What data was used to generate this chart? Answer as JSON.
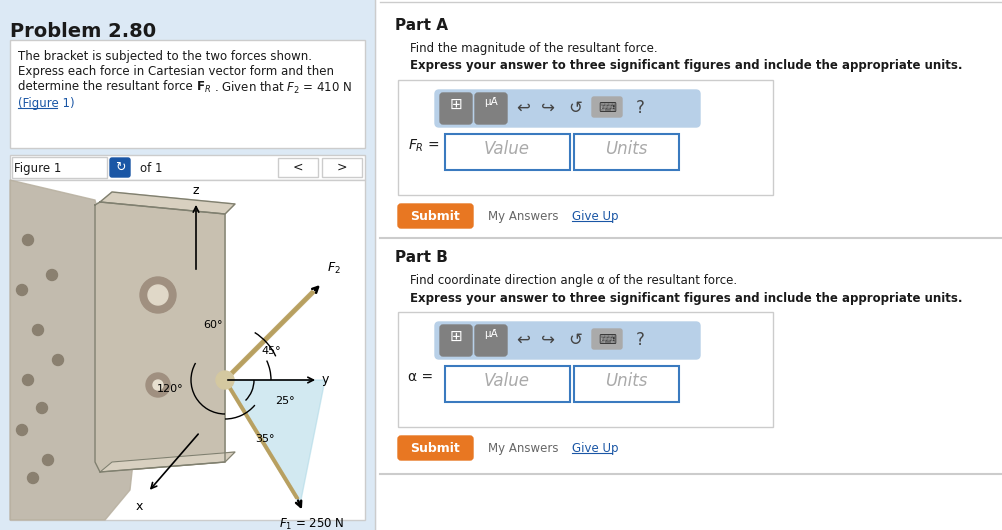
{
  "bg_color": "#dce9f5",
  "white": "#ffffff",
  "orange": "#e87722",
  "blue_link": "#1a56a5",
  "dark_text": "#1a1a1a",
  "gray_text": "#666666",
  "light_blue_toolbar": "#b8d0e8",
  "border_gray": "#cccccc",
  "input_border": "#3a7abf",
  "separator": "#cccccc",
  "problem_title": "Problem 2.80",
  "problem_text_line1": "The bracket is subjected to the two forces shown.",
  "problem_text_line2": "Express each force in Cartesian vector form and then",
  "problem_text_line4": "(Figure 1)",
  "figure_label": "Figure 1",
  "figure_of": "of 1",
  "part_a_title": "Part A",
  "part_a_text": "Find the magnitude of the resultant force.",
  "part_a_bold": "Express your answer to three significant figures and include the appropriate units.",
  "part_b_title": "Part B",
  "part_b_text": "Find coordinate direction angle α of the resultant force.",
  "part_b_bold": "Express your answer to three significant figures and include the appropriate units.",
  "part_b_label": "α =",
  "submit_text": "Submit",
  "my_answers_text": "My Answers",
  "give_up_text": "Give Up"
}
